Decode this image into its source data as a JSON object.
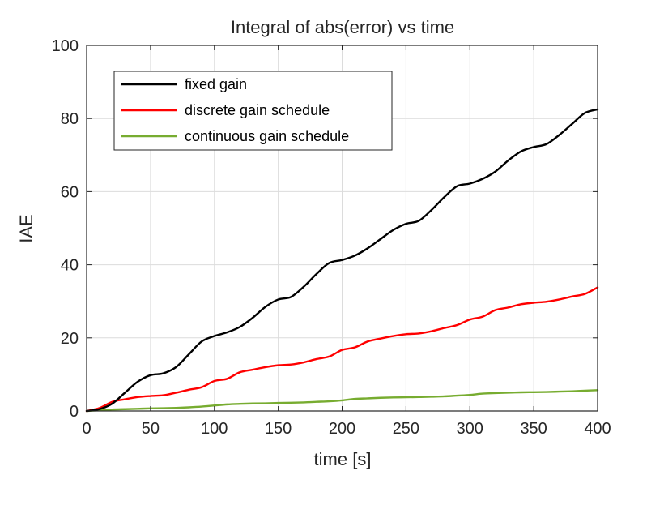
{
  "chart_data": {
    "type": "line",
    "title": "Integral of abs(error) vs time",
    "xlabel": "time [s]",
    "ylabel": "IAE",
    "xlim": [
      0,
      400
    ],
    "ylim": [
      0,
      100
    ],
    "xticks": [
      0,
      50,
      100,
      150,
      200,
      250,
      300,
      350,
      400
    ],
    "yticks": [
      0,
      20,
      40,
      60,
      80,
      100
    ],
    "grid": true,
    "legend_position": "top-left",
    "series": [
      {
        "name": "fixed gain",
        "color": "#000000",
        "x": [
          0,
          10,
          20,
          30,
          40,
          50,
          60,
          70,
          80,
          90,
          100,
          110,
          120,
          130,
          140,
          150,
          160,
          170,
          180,
          190,
          200,
          210,
          220,
          230,
          240,
          250,
          260,
          270,
          280,
          290,
          300,
          310,
          320,
          330,
          340,
          350,
          360,
          370,
          380,
          390,
          400
        ],
        "y": [
          0,
          0.5,
          2,
          5,
          8,
          9.8,
          10.3,
          12,
          15.5,
          19,
          20.5,
          21.5,
          23,
          25.5,
          28.5,
          30.5,
          31.2,
          34,
          37.5,
          40.5,
          41.3,
          42.5,
          44.5,
          47,
          49.5,
          51.2,
          52,
          55,
          58.5,
          61.5,
          62.2,
          63.5,
          65.5,
          68.5,
          71,
          72.2,
          73,
          75.5,
          78.5,
          81.5,
          82.5
        ]
      },
      {
        "name": "discrete gain schedule",
        "color": "#ff0000",
        "x": [
          0,
          10,
          20,
          30,
          40,
          50,
          60,
          70,
          80,
          90,
          100,
          110,
          120,
          130,
          140,
          150,
          160,
          170,
          180,
          190,
          200,
          210,
          220,
          230,
          240,
          250,
          260,
          270,
          280,
          290,
          300,
          310,
          320,
          330,
          340,
          350,
          360,
          370,
          380,
          390,
          400
        ],
        "y": [
          0,
          0.8,
          2.5,
          3.2,
          3.8,
          4.1,
          4.3,
          5,
          5.8,
          6.5,
          8.2,
          8.8,
          10.6,
          11.3,
          12,
          12.5,
          12.7,
          13.3,
          14.2,
          14.9,
          16.7,
          17.4,
          19,
          19.8,
          20.5,
          21,
          21.2,
          21.8,
          22.7,
          23.5,
          25,
          25.8,
          27.6,
          28.3,
          29.2,
          29.6,
          29.9,
          30.5,
          31.3,
          32,
          33.8
        ]
      },
      {
        "name": "continuous gain schedule",
        "color": "#77ac30",
        "x": [
          0,
          10,
          20,
          30,
          40,
          50,
          60,
          70,
          80,
          90,
          100,
          110,
          120,
          130,
          140,
          150,
          160,
          170,
          180,
          190,
          200,
          210,
          220,
          230,
          240,
          250,
          260,
          270,
          280,
          290,
          300,
          310,
          320,
          330,
          340,
          350,
          360,
          370,
          380,
          390,
          400
        ],
        "y": [
          0,
          0.2,
          0.4,
          0.5,
          0.6,
          0.7,
          0.75,
          0.85,
          1.0,
          1.2,
          1.5,
          1.8,
          1.95,
          2.05,
          2.1,
          2.2,
          2.25,
          2.35,
          2.5,
          2.65,
          2.9,
          3.3,
          3.45,
          3.6,
          3.7,
          3.75,
          3.8,
          3.9,
          4.0,
          4.2,
          4.4,
          4.75,
          4.9,
          5.0,
          5.1,
          5.15,
          5.2,
          5.3,
          5.4,
          5.55,
          5.7
        ]
      }
    ]
  }
}
